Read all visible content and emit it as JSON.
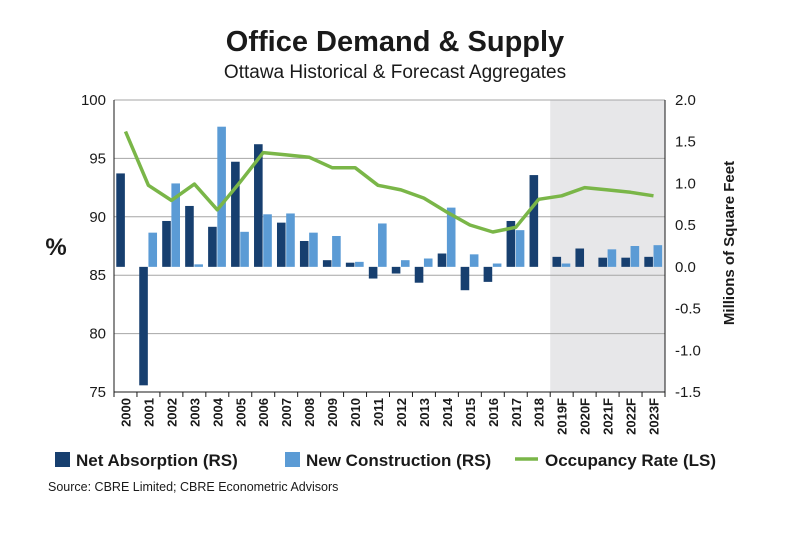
{
  "chart_data": {
    "type": "bar",
    "title": "Office Demand & Supply",
    "subtitle": "Ottawa Historical & Forecast Aggregates",
    "categories": [
      "2000",
      "2001",
      "2002",
      "2003",
      "2004",
      "2005",
      "2006",
      "2007",
      "2008",
      "2009",
      "2010",
      "2011",
      "2012",
      "2013",
      "2014",
      "2015",
      "2016",
      "2017",
      "2018",
      "2019F",
      "2020F",
      "2021F",
      "2022F",
      "2023F"
    ],
    "forecast_start_index": 19,
    "left_axis": {
      "label": "%",
      "min": 75,
      "max": 100,
      "ticks": [
        100,
        95,
        90,
        85,
        80,
        75
      ]
    },
    "right_axis": {
      "label": "Millions of Square Feet",
      "min": -1.5,
      "max": 2.0,
      "ticks": [
        "2.0",
        "1.5",
        "1.0",
        "0.5",
        "0.0",
        "-0.5",
        "-1.0",
        "-1.5"
      ],
      "tick_values": [
        2.0,
        1.5,
        1.0,
        0.5,
        0.0,
        -0.5,
        -1.0,
        -1.5
      ]
    },
    "series": [
      {
        "name": "Net Absorption (RS)",
        "type": "bar",
        "axis": "right",
        "color": "#173f6f",
        "values": [
          1.12,
          -1.42,
          0.55,
          0.73,
          0.48,
          1.26,
          1.47,
          0.53,
          0.31,
          0.08,
          0.05,
          -0.14,
          -0.08,
          -0.19,
          0.16,
          -0.28,
          -0.18,
          0.55,
          1.1,
          0.12,
          0.22,
          0.11,
          0.11,
          0.12
        ]
      },
      {
        "name": "New Construction (RS)",
        "type": "bar",
        "axis": "right",
        "color": "#5b9bd5",
        "values": [
          0.0,
          0.41,
          1.0,
          0.03,
          1.68,
          0.42,
          0.63,
          0.64,
          0.41,
          0.37,
          0.06,
          0.52,
          0.08,
          0.1,
          0.71,
          0.15,
          0.04,
          0.44,
          0.0,
          0.04,
          0.0,
          0.21,
          0.25,
          0.26
        ]
      },
      {
        "name": "Occupancy Rate (LS)",
        "type": "line",
        "axis": "left",
        "color": "#7ab648",
        "values": [
          97.3,
          92.7,
          91.4,
          92.8,
          90.6,
          93.0,
          95.5,
          95.3,
          95.1,
          94.2,
          94.2,
          92.7,
          92.3,
          91.6,
          90.4,
          89.3,
          88.7,
          89.1,
          91.5,
          91.8,
          92.5,
          92.3,
          92.1,
          91.8
        ]
      }
    ],
    "legend": [
      "Net Absorption (RS)",
      "New Construction (RS)",
      "Occupancy Rate (LS)"
    ],
    "legend_position": "bottom"
  },
  "source_text": "Source:  CBRE Limited; CBRE Econometric Advisors"
}
